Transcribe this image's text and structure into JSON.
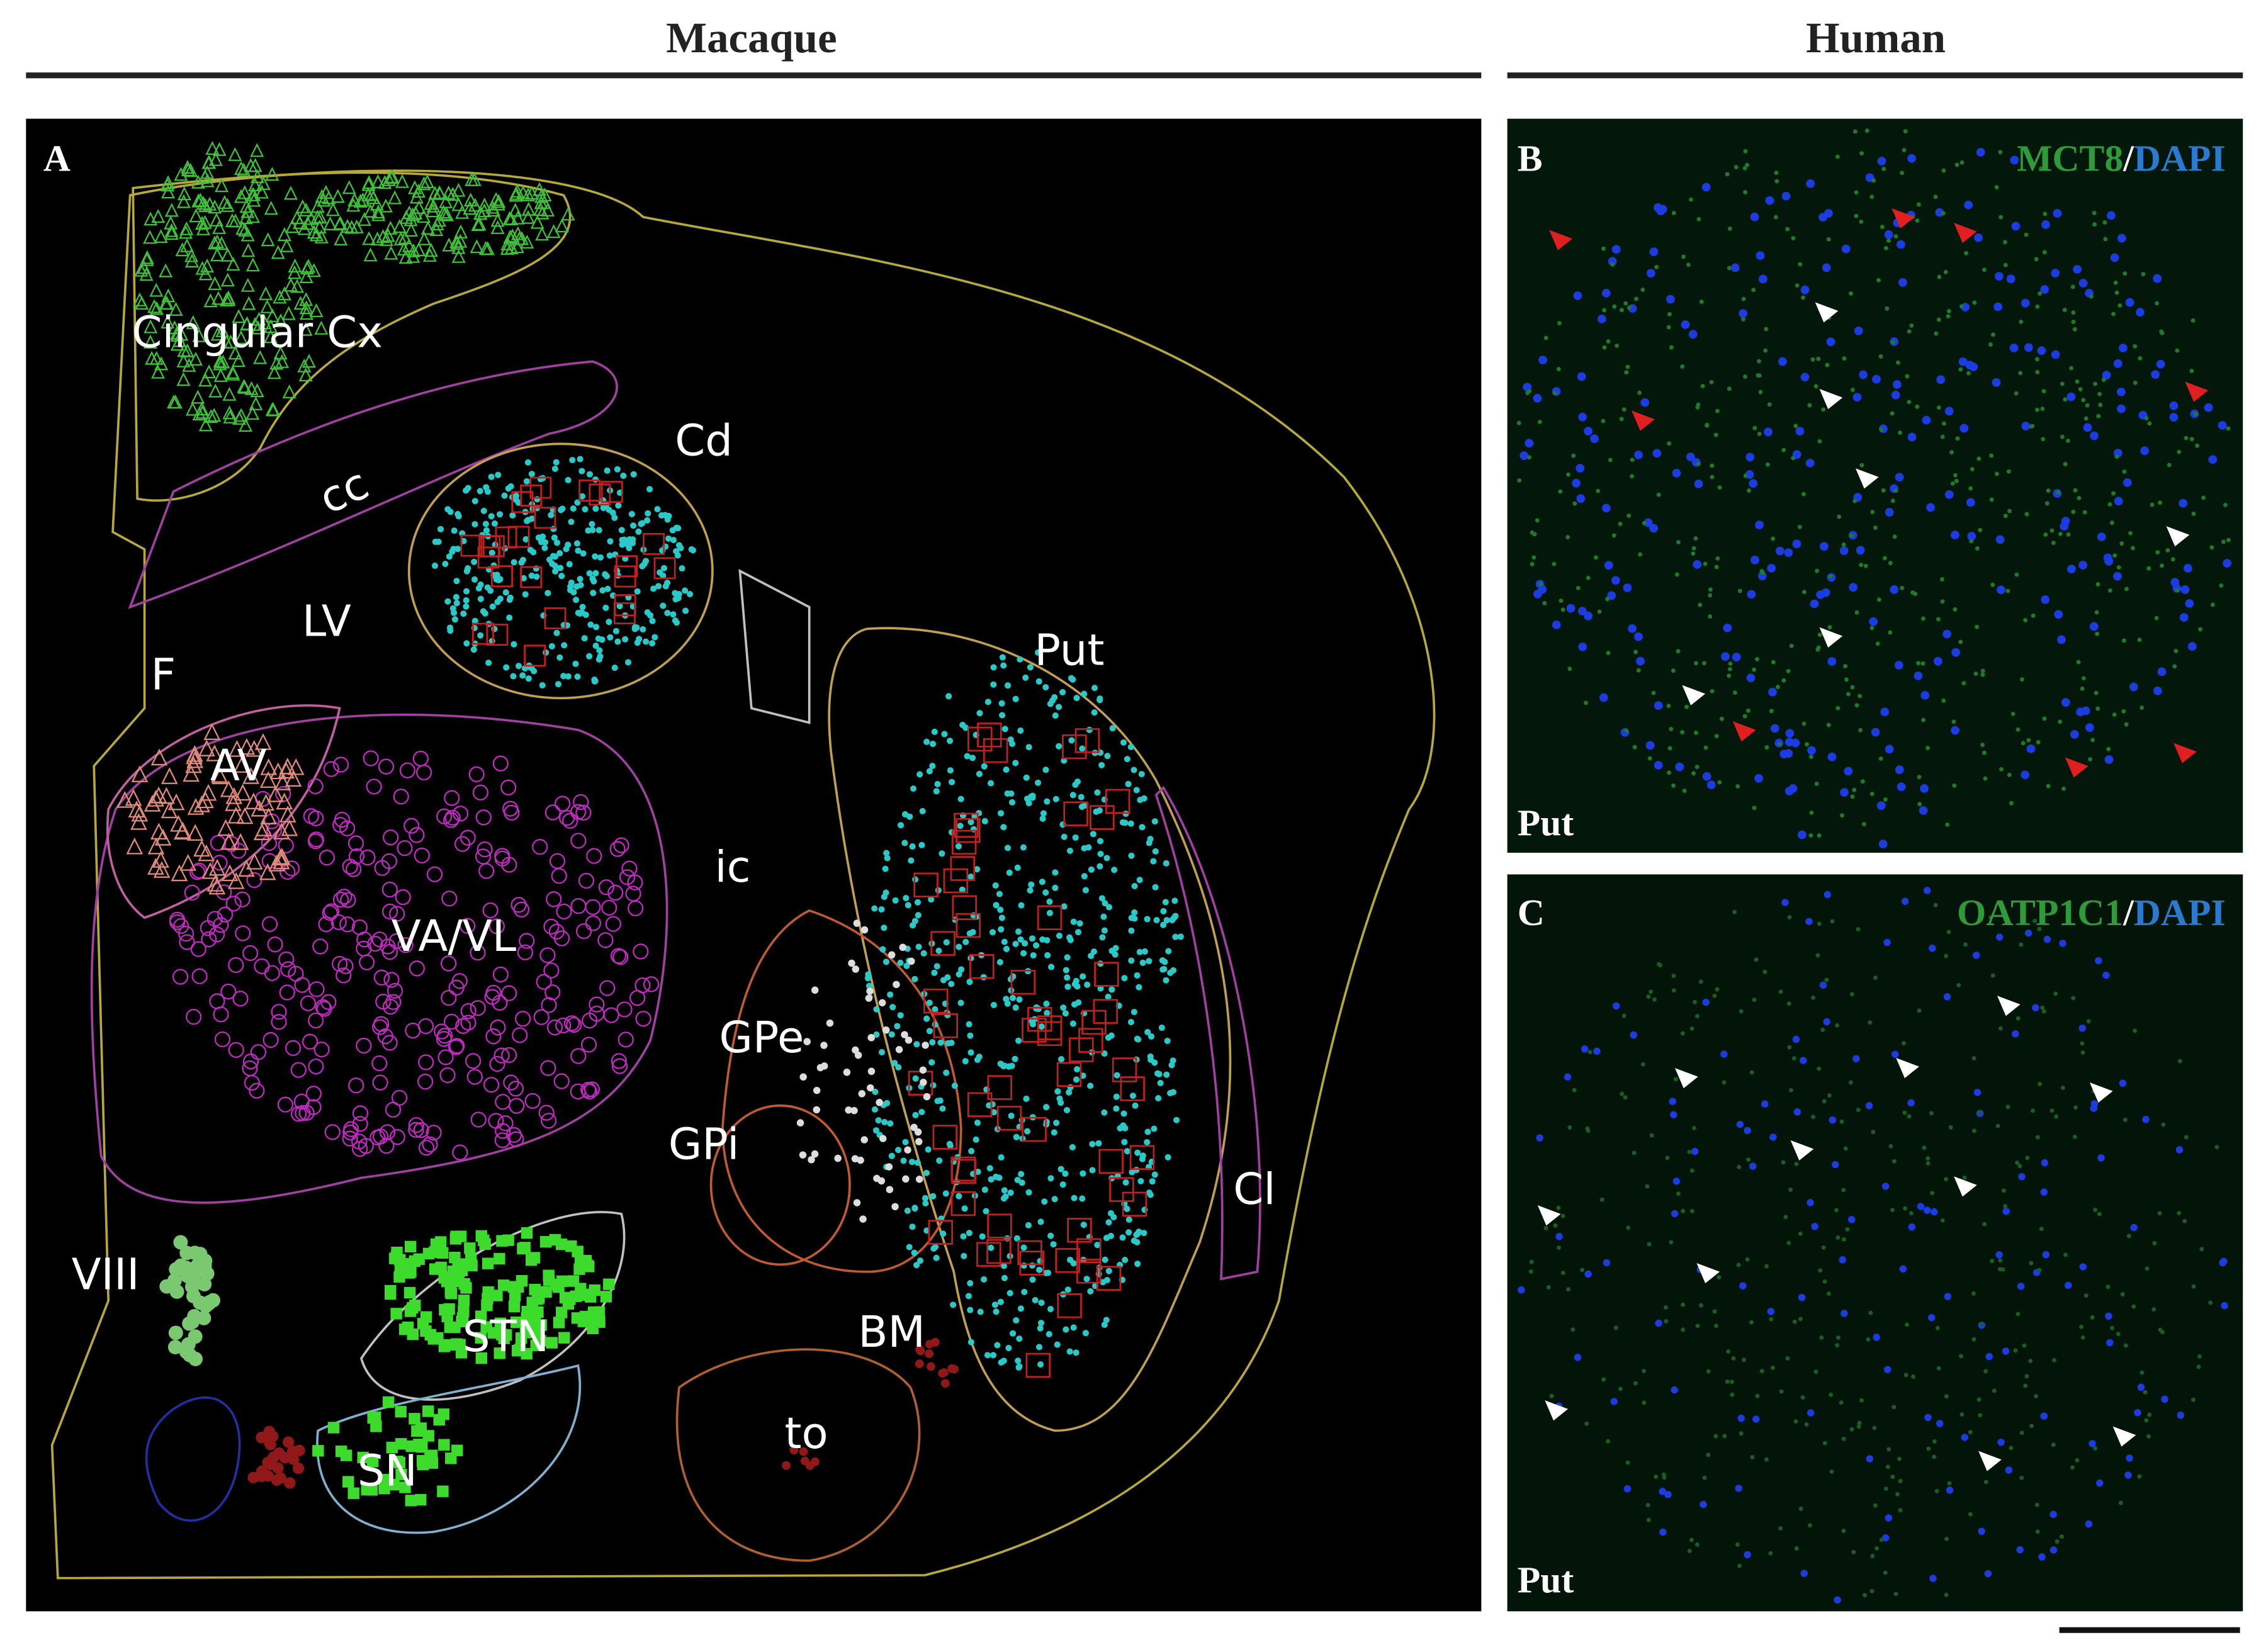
{
  "header": {
    "left": "Macaque",
    "right": "Human"
  },
  "panels": [
    {
      "label": "A",
      "regions": [
        "Cingular Cx",
        "cc",
        "Cd",
        "LV",
        "F",
        "Put",
        "AV",
        "ic",
        "VA/VL",
        "GPe",
        "GPi",
        "Cl",
        "VIII",
        "STN",
        "BM",
        "to",
        "SN"
      ]
    },
    {
      "label": "B",
      "stain": [
        "MCT8",
        "/",
        "DAPI"
      ],
      "region": "Put"
    },
    {
      "label": "C",
      "stain": [
        "OATP1C1",
        "/",
        "DAPI"
      ],
      "region": "Put"
    }
  ]
}
